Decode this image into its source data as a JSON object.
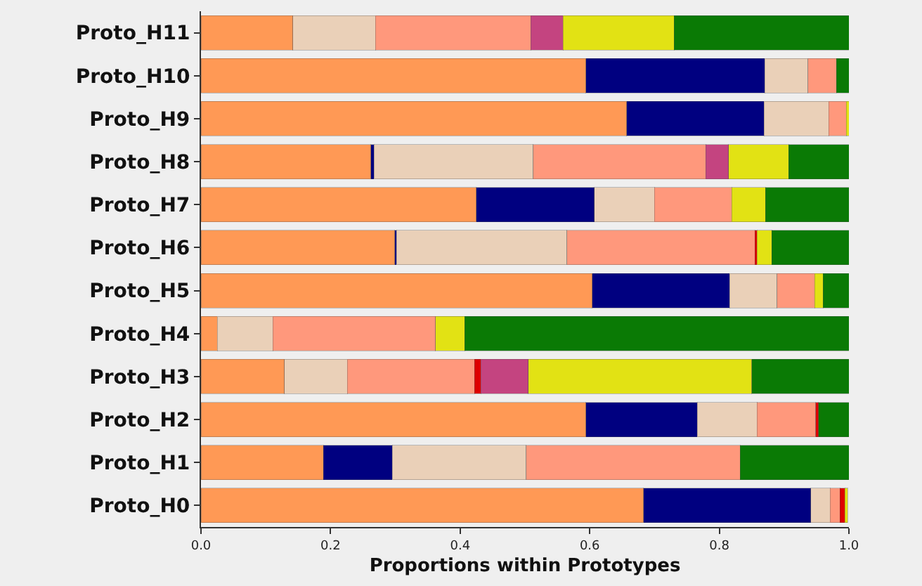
{
  "chart_data": {
    "type": "bar",
    "orientation": "horizontal",
    "stacked": true,
    "xlabel": "Proportions within Prototypes",
    "categories": [
      "Proto_H11",
      "Proto_H10",
      "Proto_H9",
      "Proto_H8",
      "Proto_H7",
      "Proto_H6",
      "Proto_H5",
      "Proto_H4",
      "Proto_H3",
      "Proto_H2",
      "Proto_H1",
      "Proto_H0"
    ],
    "series": [
      {
        "color": "#ff9955",
        "values": [
          0.142,
          0.594,
          0.657,
          0.262,
          0.425,
          0.299,
          0.604,
          0.025,
          0.129,
          0.594,
          0.189,
          0.683
        ]
      },
      {
        "color": "#000080",
        "values": [
          null,
          0.276,
          0.212,
          0.005,
          0.182,
          0.003,
          0.212,
          null,
          null,
          0.172,
          0.106,
          0.258
        ]
      },
      {
        "color": "#ead0b8",
        "values": [
          0.127,
          0.067,
          0.1,
          0.246,
          0.093,
          0.263,
          0.073,
          0.086,
          0.097,
          0.092,
          0.207,
          0.03
        ]
      },
      {
        "color": "#ff987c",
        "values": [
          0.24,
          0.044,
          0.027,
          0.266,
          0.119,
          0.29,
          0.058,
          0.251,
          0.196,
          0.091,
          0.33,
          0.015
        ]
      },
      {
        "color": "#dd0000",
        "values": [
          null,
          null,
          null,
          null,
          null,
          0.003,
          null,
          null,
          0.01,
          0.004,
          null,
          0.008
        ]
      },
      {
        "color": "#c44480",
        "values": [
          0.05,
          null,
          null,
          0.035,
          null,
          null,
          null,
          null,
          0.073,
          null,
          null,
          null
        ]
      },
      {
        "color": "#e2e214",
        "values": [
          0.171,
          null,
          0.004,
          0.093,
          0.052,
          0.023,
          0.013,
          0.045,
          0.345,
          null,
          null,
          0.004
        ]
      },
      {
        "color": "#0a7a05",
        "values": [
          0.27,
          0.019,
          null,
          0.093,
          0.129,
          0.119,
          0.04,
          0.593,
          0.15,
          0.047,
          0.168,
          null
        ]
      }
    ],
    "xlim": [
      0,
      1
    ],
    "xticks": [
      {
        "value": 0,
        "label": "0.0"
      },
      0.2,
      0.4,
      0.6,
      0.8,
      {
        "value": 1,
        "label": "1.0"
      }
    ],
    "grid": false
  }
}
